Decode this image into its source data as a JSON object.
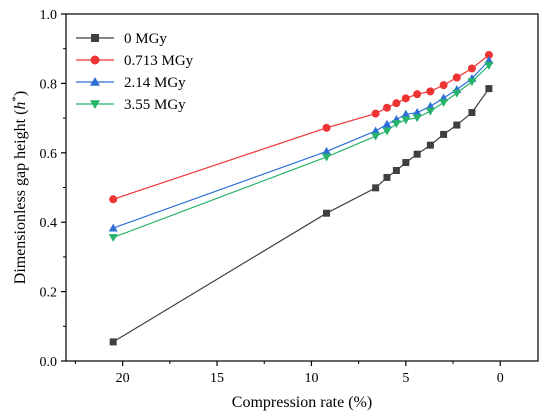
{
  "chart_data": {
    "type": "line",
    "title": "",
    "xlabel": "Compression rate (%)",
    "ylabel_main": "Dimensionless gap height (",
    "ylabel_symbol": "h",
    "ylabel_sup": "*",
    "ylabel_close": ")",
    "xlim": [
      23,
      -2
    ],
    "ylim": [
      0.0,
      1.0
    ],
    "x_reversed": true,
    "x_ticks": [
      20,
      15,
      10,
      5,
      0
    ],
    "x_tick_labels": [
      "20",
      "15",
      "10",
      "5",
      "0"
    ],
    "y_ticks": [
      0.0,
      0.2,
      0.4,
      0.6,
      0.8,
      1.0
    ],
    "y_tick_labels": [
      "0.0",
      "0.2",
      "0.4",
      "0.6",
      "0.8",
      "1.0"
    ],
    "grid": false,
    "legend_position": "top-left",
    "series": [
      {
        "name": "0 MGy",
        "color": "#3f3f3f",
        "marker": "square",
        "points": [
          [
            20.5,
            0.055
          ],
          [
            9.2,
            0.426
          ],
          [
            6.6,
            0.499
          ],
          [
            6.0,
            0.529
          ],
          [
            5.5,
            0.549
          ],
          [
            5.0,
            0.572
          ],
          [
            4.4,
            0.596
          ],
          [
            3.7,
            0.622
          ],
          [
            3.0,
            0.653
          ],
          [
            2.3,
            0.68
          ],
          [
            1.5,
            0.716
          ],
          [
            0.6,
            0.785
          ]
        ]
      },
      {
        "name": "0.713 MGy",
        "color": "#ee3333",
        "marker": "circle",
        "points": [
          [
            20.5,
            0.466
          ],
          [
            9.2,
            0.672
          ],
          [
            6.6,
            0.713
          ],
          [
            6.0,
            0.73
          ],
          [
            5.5,
            0.743
          ],
          [
            5.0,
            0.757
          ],
          [
            4.4,
            0.769
          ],
          [
            3.7,
            0.777
          ],
          [
            3.0,
            0.795
          ],
          [
            2.3,
            0.817
          ],
          [
            1.5,
            0.843
          ],
          [
            0.6,
            0.882
          ]
        ]
      },
      {
        "name": "2.14 MGy",
        "color": "#2e6fd6",
        "marker": "triangle-up",
        "points": [
          [
            20.5,
            0.383
          ],
          [
            9.2,
            0.604
          ],
          [
            6.6,
            0.663
          ],
          [
            6.0,
            0.682
          ],
          [
            5.5,
            0.696
          ],
          [
            5.0,
            0.711
          ],
          [
            4.4,
            0.716
          ],
          [
            3.7,
            0.734
          ],
          [
            3.0,
            0.758
          ],
          [
            2.3,
            0.782
          ],
          [
            1.5,
            0.814
          ],
          [
            0.6,
            0.866
          ]
        ]
      },
      {
        "name": "3.55 MGy",
        "color": "#27b36a",
        "marker": "triangle-down",
        "points": [
          [
            20.5,
            0.356
          ],
          [
            9.2,
            0.588
          ],
          [
            6.6,
            0.648
          ],
          [
            6.0,
            0.663
          ],
          [
            5.5,
            0.684
          ],
          [
            5.0,
            0.695
          ],
          [
            4.4,
            0.701
          ],
          [
            3.7,
            0.72
          ],
          [
            3.0,
            0.745
          ],
          [
            2.3,
            0.772
          ],
          [
            1.5,
            0.805
          ],
          [
            0.6,
            0.852
          ]
        ]
      }
    ]
  }
}
